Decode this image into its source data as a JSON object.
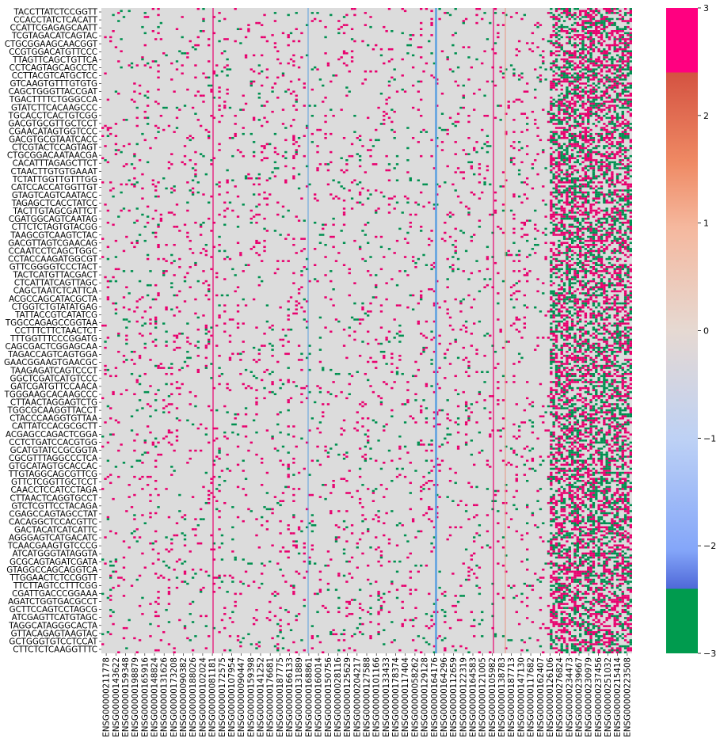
{
  "chart_data": {
    "type": "heatmap",
    "row_labels": [
      "TACCTTATCTCCGGTT",
      "CCACCTATCTCACATT",
      "CCATTCGAGAGCAATT",
      "TCGTAGACATCAGTAC",
      "CTGCGGAAGCAACGGT",
      "CCGTGGACATGTTCCC",
      "TTAGTTCAGCTGTTCA",
      "CCTCAGTAGCAGCCTC",
      "CCTTACGTCATGCTCC",
      "GTCAAGTGTTTGTGTG",
      "CAGCTGGGTTACCGAT",
      "TGACTTTTCTGGGCCA",
      "GTATCTTCACAAGCCC",
      "TGCACCTCACTGTCGG",
      "GACGTGCGTTGCTCCT",
      "CGAACATAGTGGTCCC",
      "GACGTGCGTAATCACC",
      "CTCGTACTCCAGTAGT",
      "CTGCGGACAATAACGA",
      "CACATTTAGAGCTTCT",
      "CTAACTTGTGTGAAAT",
      "TCTATTGGTTGTTTGG",
      "CATCCACCATGGTTGT",
      "GTAGTCAGTCAATACC",
      "TAGAGCTCACCTATCC",
      "TACTTGTAGCGATTCT",
      "CGATGGCAGTCAATAG",
      "CTTCTCTAGTGTACGG",
      "TAAGCGTCAAGTCTAC",
      "GACGTTAGTCGAACAG",
      "CCAATCCTCAGCTGGC",
      "CCTACCAAGATGGCGT",
      "GTTCGGGGTCCCTACT",
      "TACTCATGTTACGACT",
      "CTCATTATCAGTTAGC",
      "CAGCTAATCTCATTCA",
      "ACGCCAGCATACGCTA",
      "CTGGTCTGTATATGAG",
      "TATTACCGTCATATCG",
      "TGGCCAGAGCCGGTAA",
      "CCTTTCTTCTAACTCT",
      "TTTGGTTTCCCGGATG",
      "CAGCGACTCGGAGCAA",
      "TAGACCAGTCAGTGGA",
      "GAACGGAAGTGAACGC",
      "TAAGAGATCAGTCCCT",
      "GGCTCGATCATGTCCC",
      "GATCGATGTTCCAACA",
      "TGGGAAGCACAAGCCC",
      "CTTAACTAGGAGTCTG",
      "TGGCGCAAGGTTACCT",
      "CTACCCAAGGTGTTAA",
      "CATTATCCACGCGCTT",
      "ACGAGCCAGACTCGGA",
      "CCTCTGATCCACGTGG",
      "GCATGTATCCGCGGTA",
      "CGCGTTTAGGCCCTCA",
      "GTGCATAGTGCACCAC",
      "TTGTAGGCAGCGTTCG",
      "GTTCTCGGTTGCTCCT",
      "CAACCTCCATCCTAGA",
      "CTTAACTCAGGTGCCT",
      "GTCTCGTTCCTACAGA",
      "CGAGCCAGTAGCCTAT",
      "CACAGGCTCCACGTTC",
      "GACTACATCATCATTC",
      "AGGGAGTCATGACATC",
      "TCAACGAAGTGTCCCG",
      "ATCATGGGTATAGGTA",
      "GCGCAGTAGATCGATA",
      "GTAGGCCAGCAGGTCA",
      "TTGGAACTCTCCGGTT",
      "TTCTTAGTCCTTTCGG",
      "CGATTGACCCGGAAA",
      "AGATCTGGTGACGCCT",
      "GCTTCCAGTCCTAGCG",
      "ATCGAGTTCATGTAGC",
      "TAGGCATAGGGCACTA",
      "GTTACAGAGTAAGTAC",
      "GCTGGGTGTCCTCCAT",
      "CTTCTCTCAAGGTTTC"
    ],
    "column_labels": [
      "ENSG00000211778",
      "ENSG00000143622",
      "ENSG00000159348",
      "ENSG00000198879",
      "ENSG00000165916",
      "ENSG00000148824",
      "ENSG00000131626",
      "ENSG00000173208",
      "ENSG00000090382",
      "ENSG00000188026",
      "ENSG00000102024",
      "ENSG00000081181",
      "ENSG00000172575",
      "ENSG00000107954",
      "ENSG00000090447",
      "ENSG00000159398",
      "ENSG00000141252",
      "ENSG00000176681",
      "ENSG00000187775",
      "ENSG00000166133",
      "ENSG00000131889",
      "ENSG00000168861",
      "ENSG00000160014",
      "ENSG00000150756",
      "ENSG00000028116",
      "ENSG00000125629",
      "ENSG00000204217",
      "ENSG00000127588",
      "ENSG00000101166",
      "ENSG00000133433",
      "ENSG00000178374",
      "ENSG00000117404",
      "ENSG00000058262",
      "ENSG00000129128",
      "ENSG00000164176",
      "ENSG00000164296",
      "ENSG00000112659",
      "ENSG00000122319",
      "ENSG00000164583",
      "ENSG00000121005",
      "ENSG00000105982",
      "ENSG00000138783",
      "ENSG00000187713",
      "ENSG00000147130",
      "ENSG00000117682",
      "ENSG00000162407",
      "ENSG00000126106",
      "ENSG00000276824",
      "ENSG00000234473",
      "ENSG00000239667",
      "ENSG00000230979",
      "ENSG00000237456",
      "ENSG00000251032",
      "ENSG00000215414",
      "ENSG00000223508"
    ],
    "colorbar": {
      "ticks": [
        3,
        2,
        1,
        0,
        -1,
        -2,
        -3
      ],
      "vmin": -3,
      "vmax": 3,
      "colors": [
        "#009b4e",
        "#4f68d8",
        "#84a6f9",
        "#bdd1f5",
        "#e6d9d2",
        "#f5b89e",
        "#ef8a64",
        "#d45241",
        "#ff0080"
      ]
    },
    "cell_colors": {
      "neutral": "#dcdcdc",
      "high": "#e8006e",
      "low": "#009050",
      "mid_blue": "#5aa0e0",
      "salmon": "#e8a090"
    }
  }
}
